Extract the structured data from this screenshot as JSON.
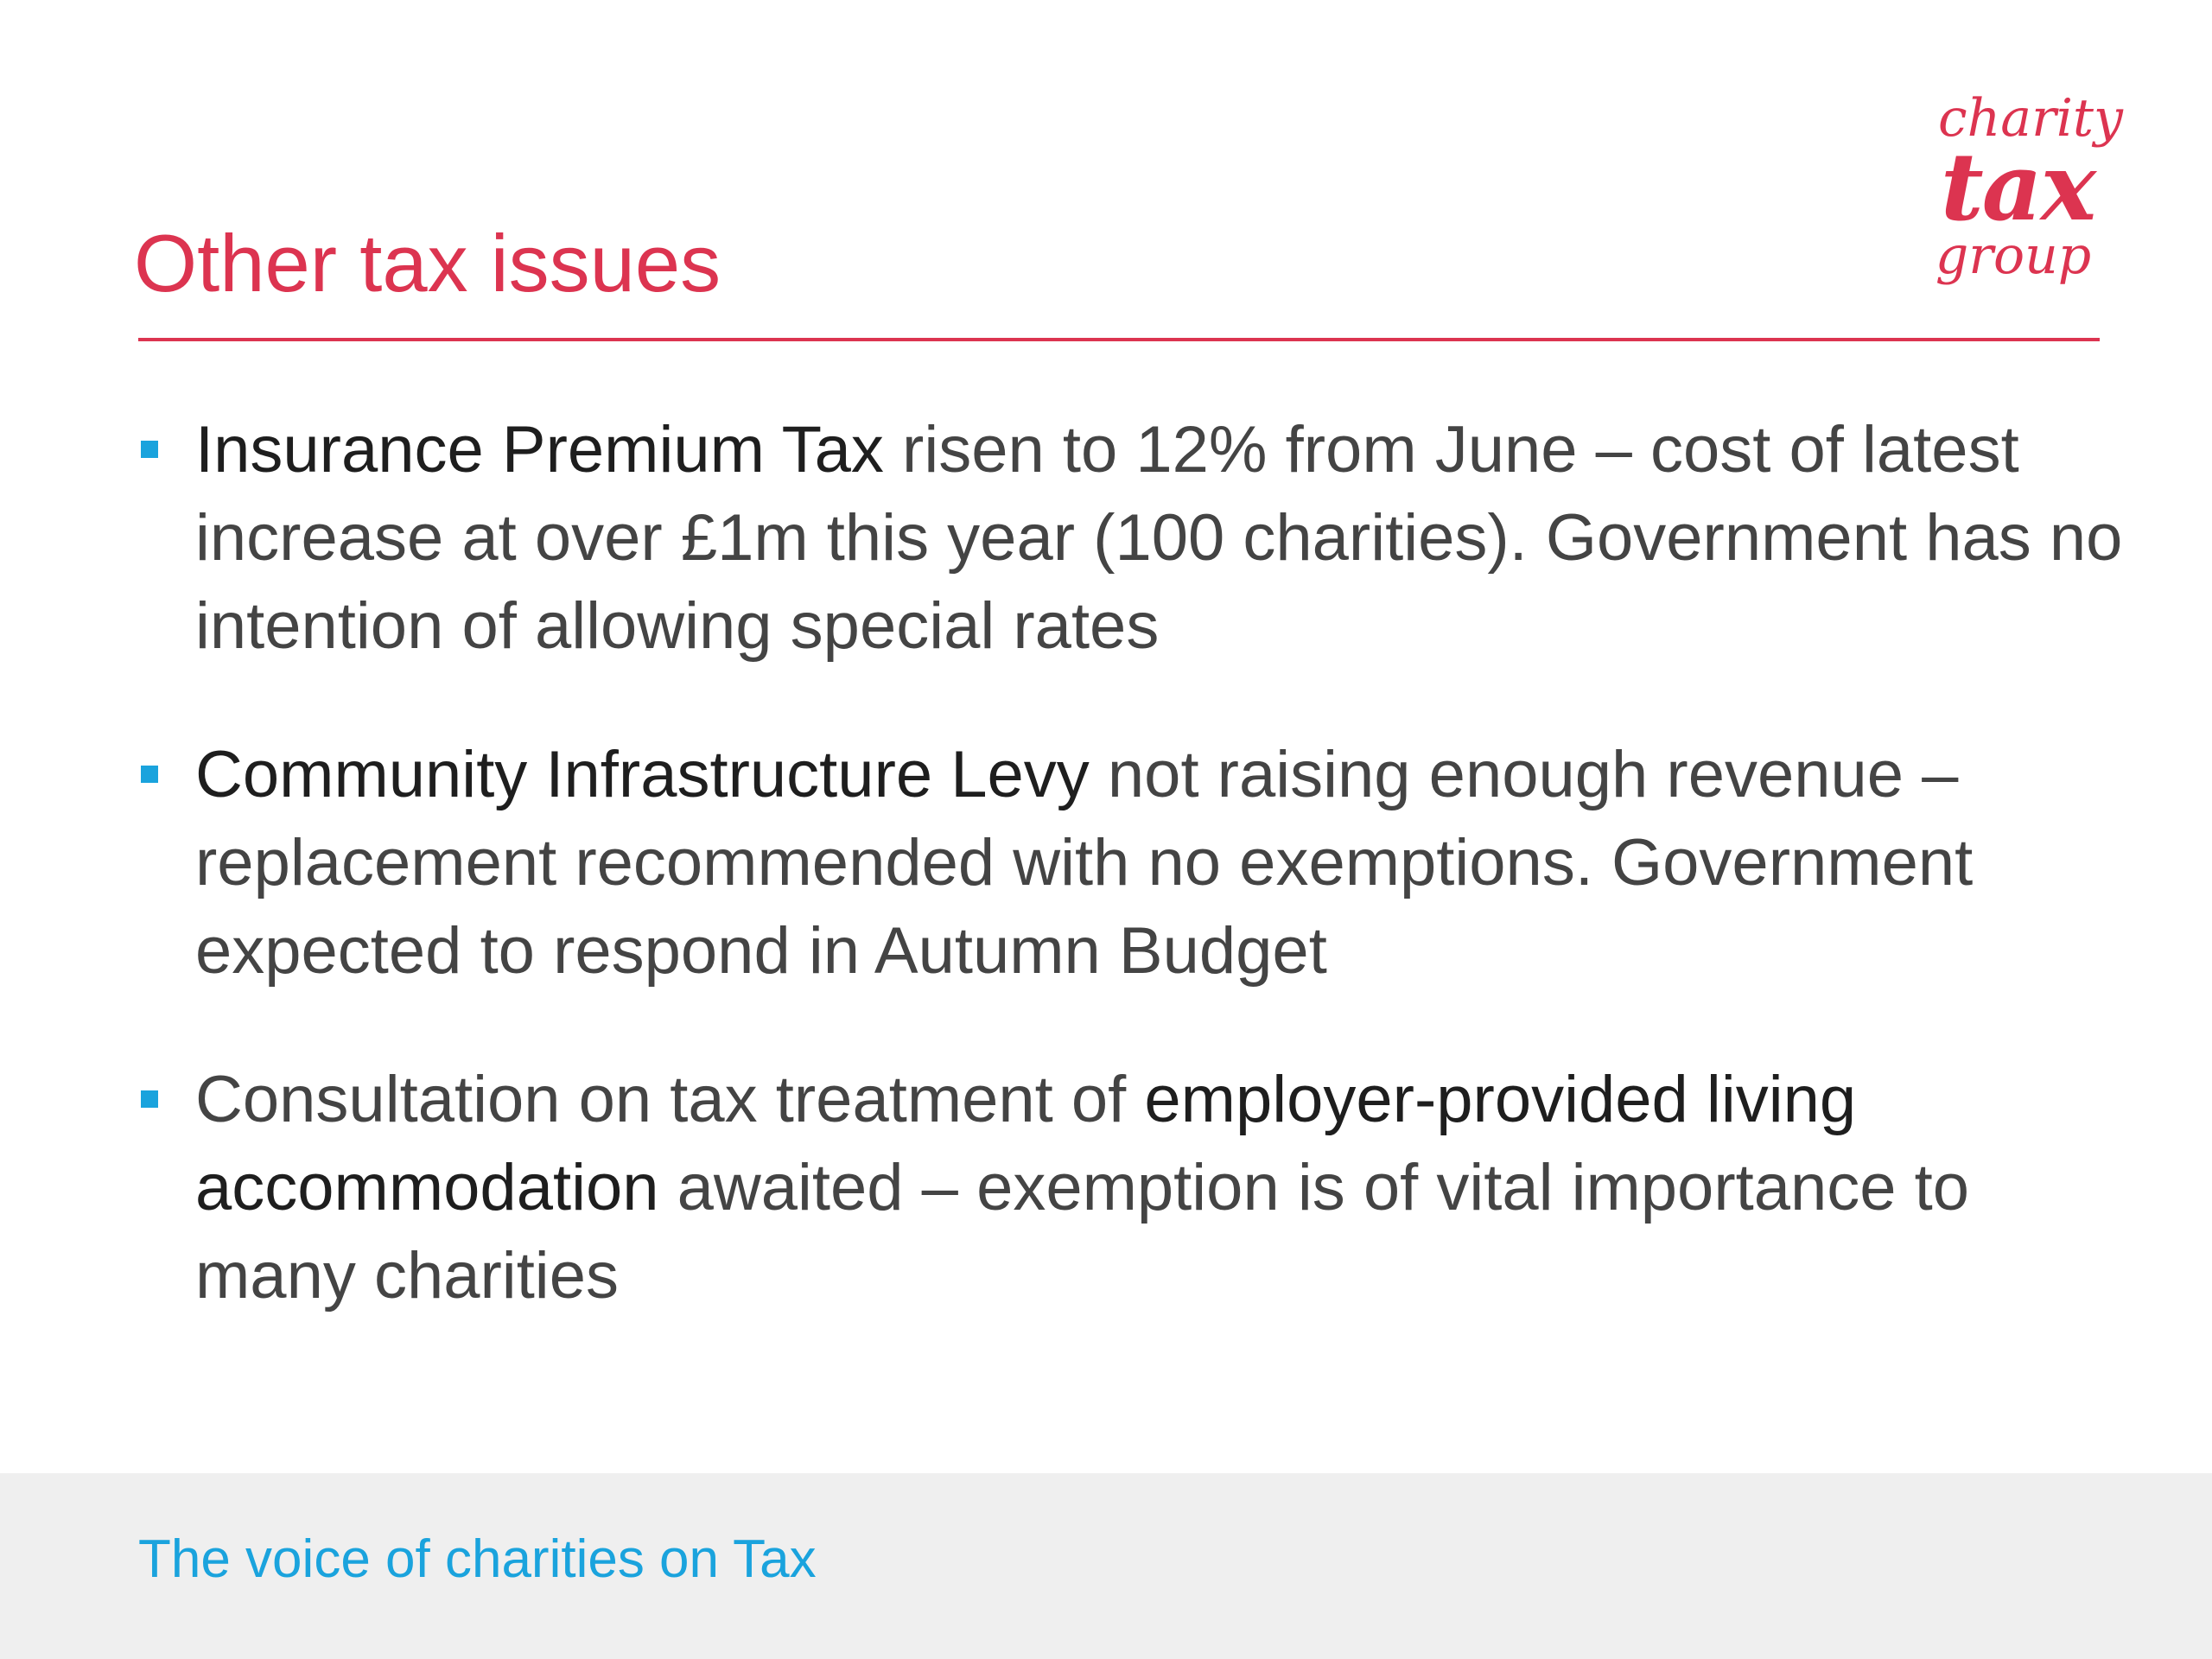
{
  "slide": {
    "title": "Other tax issues",
    "logo": {
      "line1": "charity",
      "line2": "tax",
      "line3": "group"
    },
    "colors": {
      "accent": "#dc3450",
      "bullet": "#1aa3dd",
      "footer_bg": "#efefef"
    },
    "bullets": [
      {
        "emph1": "Insurance Premium Tax",
        "text1": " risen to 12% from June – cost of latest increase at over £1m this year (100 charities). Government has no intention of allowing special rates"
      },
      {
        "emph1": "Community Infrastructure Levy",
        "text1": " not raising enough revenue – replacement recommended with no exemptions. Government expected to respond in Autumn Budget"
      },
      {
        "text0": "Consultation on tax treatment of ",
        "emph1": "employer-provided living accommodation",
        "text1": " awaited – exemption is of vital importance to many charities"
      }
    ],
    "footer": "The voice of charities on Tax"
  }
}
